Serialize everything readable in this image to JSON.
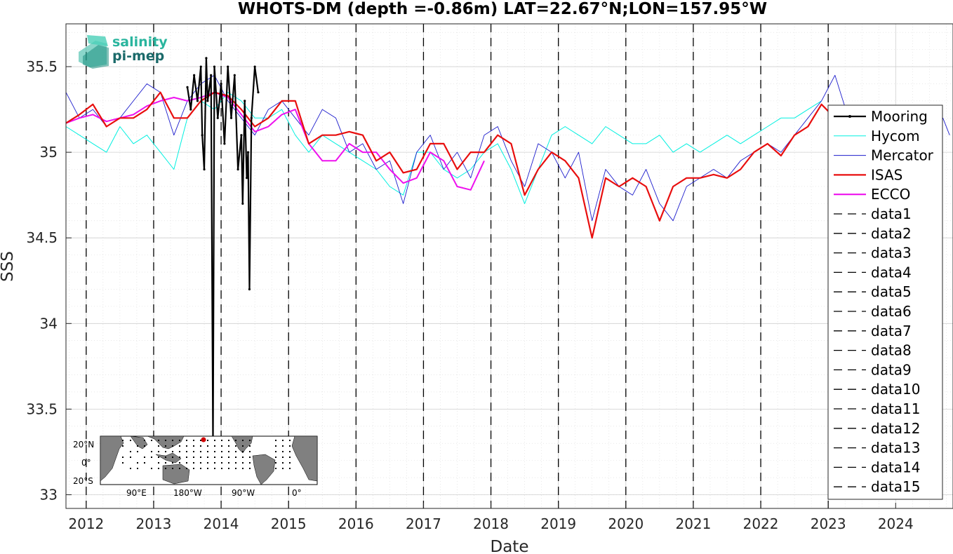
{
  "chart_data": {
    "type": "line",
    "title": "WHOTS-DM (depth =-0.86m) LAT=22.67°N;LON=157.95°W",
    "xlabel": "Date",
    "ylabel": "SSS",
    "xlim": [
      2011.7,
      2024.85
    ],
    "ylim": [
      32.92,
      35.75
    ],
    "x_ticks": [
      2012,
      2013,
      2014,
      2015,
      2016,
      2017,
      2018,
      2019,
      2020,
      2021,
      2022,
      2023,
      2024
    ],
    "y_ticks": [
      33,
      33.5,
      34,
      34.5,
      35,
      35.5
    ],
    "y_tick_labels": [
      "33",
      "33.5",
      "34",
      "34.5",
      "35",
      "35.5"
    ],
    "grid": true,
    "legend_position": "right-inside",
    "vertical_dashed_lines_x": [
      2012.0,
      2013.0,
      2014.0,
      2015.0,
      2016.0,
      2017.0,
      2018.0,
      2019.0,
      2020.0,
      2021.0,
      2022.0,
      2023.0
    ],
    "series": [
      {
        "name": "Mooring",
        "color": "#000000",
        "style": "solid-marker",
        "x": [
          2013.5,
          2013.55,
          2013.6,
          2013.65,
          2013.7,
          2013.72,
          2013.75,
          2013.78,
          2013.8,
          2013.85,
          2013.88,
          2013.9,
          2013.95,
          2014.0,
          2014.05,
          2014.1,
          2014.15,
          2014.2,
          2014.25,
          2014.3,
          2014.32,
          2014.35,
          2014.38,
          2014.4,
          2014.42,
          2014.45,
          2014.5,
          2014.55
        ],
        "y": [
          35.38,
          35.25,
          35.45,
          35.3,
          35.5,
          35.1,
          34.9,
          35.55,
          35.3,
          35.45,
          33.3,
          35.5,
          35.2,
          35.4,
          35.05,
          35.5,
          35.2,
          35.45,
          34.9,
          35.1,
          34.7,
          35.3,
          34.85,
          35.0,
          34.2,
          35.2,
          35.5,
          35.35
        ]
      },
      {
        "name": "Hycom",
        "color": "#00f0e0",
        "style": "solid",
        "x": [
          2011.7,
          2011.9,
          2012.1,
          2012.3,
          2012.5,
          2012.7,
          2012.9,
          2013.1,
          2013.3,
          2013.5,
          2013.7,
          2013.9,
          2014.1,
          2014.3,
          2014.5,
          2014.7,
          2014.9,
          2015.1,
          2015.3,
          2015.5,
          2015.7,
          2015.9,
          2016.1,
          2016.3,
          2016.5,
          2016.7,
          2016.9,
          2017.1,
          2017.3,
          2017.5,
          2017.7,
          2017.9,
          2018.1,
          2018.3,
          2018.5,
          2018.7,
          2018.9,
          2019.1,
          2019.3,
          2019.5,
          2019.7,
          2019.9,
          2020.1,
          2020.3,
          2020.5,
          2020.7,
          2020.9,
          2021.1,
          2021.3,
          2021.5,
          2021.7,
          2021.9,
          2022.1,
          2022.3,
          2022.5,
          2022.7,
          2022.9
        ],
        "y": [
          35.15,
          35.1,
          35.05,
          35.0,
          35.15,
          35.05,
          35.1,
          35.0,
          34.9,
          35.2,
          35.3,
          35.25,
          35.35,
          35.3,
          35.2,
          35.2,
          35.25,
          35.1,
          35.0,
          35.1,
          35.05,
          35.0,
          34.95,
          34.9,
          34.8,
          34.75,
          35.0,
          35.0,
          34.9,
          34.85,
          34.9,
          35.0,
          35.05,
          34.9,
          34.7,
          34.9,
          35.1,
          35.15,
          35.1,
          35.05,
          35.15,
          35.1,
          35.05,
          35.05,
          35.1,
          35.0,
          35.05,
          35.0,
          35.05,
          35.1,
          35.05,
          35.1,
          35.15,
          35.2,
          35.2,
          35.25,
          35.3
        ]
      },
      {
        "name": "Mercator",
        "color": "#1c1ccc",
        "style": "solid",
        "x": [
          2011.7,
          2011.9,
          2012.1,
          2012.3,
          2012.5,
          2012.7,
          2012.9,
          2013.1,
          2013.3,
          2013.5,
          2013.7,
          2013.9,
          2014.1,
          2014.3,
          2014.5,
          2014.7,
          2014.9,
          2015.1,
          2015.3,
          2015.5,
          2015.7,
          2015.9,
          2016.1,
          2016.3,
          2016.5,
          2016.7,
          2016.9,
          2017.1,
          2017.3,
          2017.5,
          2017.7,
          2017.9,
          2018.1,
          2018.3,
          2018.5,
          2018.7,
          2018.9,
          2019.1,
          2019.3,
          2019.5,
          2019.7,
          2019.9,
          2020.1,
          2020.3,
          2020.5,
          2020.7,
          2020.9,
          2021.1,
          2021.3,
          2021.5,
          2021.7,
          2021.9,
          2022.1,
          2022.3,
          2022.5,
          2022.7,
          2022.9,
          2023.1,
          2023.3,
          2023.5,
          2023.7,
          2023.9,
          2024.1,
          2024.3,
          2024.5,
          2024.7,
          2024.8
        ],
        "y": [
          35.35,
          35.2,
          35.25,
          35.15,
          35.2,
          35.3,
          35.4,
          35.35,
          35.1,
          35.3,
          35.4,
          35.45,
          35.3,
          35.2,
          35.1,
          35.25,
          35.3,
          35.2,
          35.1,
          35.25,
          35.2,
          35.0,
          35.05,
          34.9,
          34.95,
          34.7,
          35.0,
          35.1,
          34.9,
          35.0,
          34.85,
          35.1,
          35.15,
          34.95,
          34.8,
          35.05,
          35.0,
          34.85,
          35.0,
          34.6,
          34.9,
          34.8,
          34.75,
          34.9,
          34.7,
          34.6,
          34.8,
          34.85,
          34.9,
          34.85,
          34.95,
          35.0,
          35.05,
          35.0,
          35.1,
          35.2,
          35.3,
          35.45,
          35.2,
          35.15,
          35.1,
          35.2,
          35.15,
          35.25,
          35.15,
          35.2,
          35.1
        ]
      },
      {
        "name": "ISAS",
        "color": "#e80e0e",
        "style": "solid",
        "x": [
          2011.7,
          2011.9,
          2012.1,
          2012.3,
          2012.5,
          2012.7,
          2012.9,
          2013.1,
          2013.3,
          2013.5,
          2013.7,
          2013.9,
          2014.1,
          2014.3,
          2014.5,
          2014.7,
          2014.9,
          2015.1,
          2015.3,
          2015.5,
          2015.7,
          2015.9,
          2016.1,
          2016.3,
          2016.5,
          2016.7,
          2016.9,
          2017.1,
          2017.3,
          2017.5,
          2017.7,
          2017.9,
          2018.1,
          2018.3,
          2018.5,
          2018.7,
          2018.9,
          2019.1,
          2019.3,
          2019.5,
          2019.7,
          2019.9,
          2020.1,
          2020.3,
          2020.5,
          2020.7,
          2020.9,
          2021.1,
          2021.3,
          2021.5,
          2021.7,
          2021.9,
          2022.1,
          2022.3,
          2022.5,
          2022.7,
          2022.9,
          2023.1
        ],
        "y": [
          35.17,
          35.22,
          35.28,
          35.15,
          35.2,
          35.2,
          35.25,
          35.35,
          35.2,
          35.2,
          35.3,
          35.35,
          35.33,
          35.25,
          35.15,
          35.2,
          35.3,
          35.3,
          35.05,
          35.1,
          35.1,
          35.12,
          35.1,
          34.95,
          35.0,
          34.88,
          34.9,
          35.05,
          35.05,
          34.9,
          35.0,
          35.0,
          35.1,
          35.05,
          34.75,
          34.9,
          35.0,
          34.95,
          34.85,
          34.5,
          34.85,
          34.8,
          34.85,
          34.8,
          34.6,
          34.8,
          34.85,
          34.85,
          34.87,
          34.85,
          34.9,
          35.0,
          35.05,
          34.98,
          35.1,
          35.15,
          35.28,
          35.2
        ]
      },
      {
        "name": "ECCO",
        "color": "#ee11ee",
        "style": "solid",
        "x": [
          2011.7,
          2011.9,
          2012.1,
          2012.3,
          2012.5,
          2012.7,
          2012.9,
          2013.1,
          2013.3,
          2013.5,
          2013.7,
          2013.9,
          2014.1,
          2014.3,
          2014.5,
          2014.7,
          2014.9,
          2015.1,
          2015.3,
          2015.5,
          2015.7,
          2015.9,
          2016.1,
          2016.3,
          2016.5,
          2016.7,
          2016.9,
          2017.1,
          2017.3,
          2017.5,
          2017.7,
          2017.9
        ],
        "y": [
          35.17,
          35.2,
          35.22,
          35.18,
          35.2,
          35.22,
          35.27,
          35.3,
          35.32,
          35.3,
          35.32,
          35.35,
          35.32,
          35.22,
          35.12,
          35.15,
          35.22,
          35.25,
          35.05,
          34.95,
          34.95,
          35.05,
          35.0,
          35.0,
          34.9,
          34.82,
          34.85,
          35.0,
          34.95,
          34.8,
          34.78,
          34.95
        ]
      }
    ],
    "legend": [
      "Mooring",
      "Hycom",
      "Mercator",
      "ISAS",
      "ECCO",
      "data1",
      "data2",
      "data3",
      "data4",
      "data5",
      "data6",
      "data7",
      "data8",
      "data9",
      "data10",
      "data11",
      "data12",
      "data13",
      "data14",
      "data15"
    ]
  },
  "logo": {
    "line1": "salinity",
    "line2": "pi-mep"
  },
  "inset_map": {
    "lat_labels": [
      "20°N",
      "0°",
      "20°S"
    ],
    "lon_labels": [
      "90°E",
      "180°W",
      "90°W",
      "0°"
    ]
  },
  "colors": {
    "land": "#808080",
    "ocean": "#ffffff",
    "grid": "#d0d0d0",
    "axis": "#262626"
  }
}
